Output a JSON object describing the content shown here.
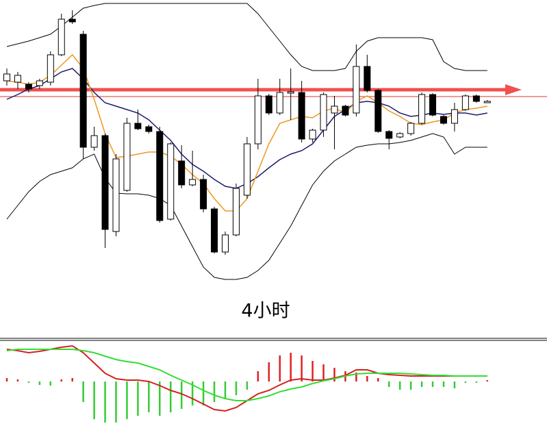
{
  "chart_data": [
    {
      "type": "candlestick",
      "annotation": "4小时",
      "ylim": [
        0,
        420
      ],
      "open": [
        302,
        300,
        297,
        295,
        300,
        340,
        392,
        370,
        205,
        222,
        82,
        142,
        240,
        235,
        228,
        100,
        185,
        150,
        158,
        115,
        52,
        77,
        135,
        210,
        280,
        255,
        284,
        285,
        217,
        230,
        255,
        265,
        255,
        323,
        288,
        228,
        220,
        225,
        240,
        282,
        250,
        240,
        260,
        280,
        270
      ],
      "close": [
        312,
        310,
        290,
        302,
        340,
        392,
        388,
        205,
        222,
        85,
        188,
        240,
        232,
        228,
        98,
        210,
        150,
        158,
        115,
        52,
        77,
        145,
        210,
        280,
        255,
        285,
        286,
        217,
        230,
        282,
        265,
        252,
        323,
        288,
        228,
        218,
        225,
        240,
        282,
        252,
        240,
        260,
        280,
        272,
        272
      ],
      "high": [
        320,
        315,
        300,
        305,
        345,
        400,
        405,
        375,
        235,
        225,
        195,
        248,
        260,
        238,
        235,
        212,
        208,
        200,
        165,
        118,
        82,
        152,
        220,
        305,
        283,
        305,
        320,
        302,
        232,
        285,
        280,
        267,
        355,
        340,
        290,
        230,
        227,
        242,
        285,
        284,
        252,
        270,
        282,
        282,
        274
      ],
      "low": [
        295,
        290,
        285,
        290,
        295,
        338,
        385,
        188,
        200,
        58,
        75,
        140,
        230,
        225,
        95,
        98,
        145,
        148,
        110,
        50,
        48,
        75,
        130,
        202,
        252,
        252,
        245,
        212,
        212,
        220,
        202,
        250,
        250,
        285,
        226,
        202,
        218,
        222,
        238,
        250,
        238,
        228,
        258,
        270,
        270
      ],
      "up_color": "#ffffff",
      "down_color": "#000000",
      "series": [
        {
          "color": "#000000",
          "values": [
            352,
            356,
            360,
            365,
            370,
            382,
            395,
            408,
            412,
            415,
            415,
            415,
            415,
            415,
            415,
            415,
            415,
            415,
            415,
            415,
            415,
            415,
            415,
            400,
            380,
            360,
            340,
            323,
            317,
            317,
            317,
            320,
            345,
            360,
            365,
            365,
            365,
            365,
            365,
            362,
            330,
            320,
            317,
            317,
            317
          ]
        },
        {
          "color": "#000000",
          "values": [
            100,
            120,
            140,
            155,
            165,
            170,
            175,
            188,
            195,
            160,
            138,
            137,
            137,
            135,
            130,
            120,
            90,
            60,
            30,
            15,
            12,
            12,
            15,
            25,
            40,
            65,
            90,
            120,
            150,
            170,
            185,
            195,
            205,
            208,
            210,
            210,
            212,
            215,
            220,
            225,
            220,
            195,
            205,
            205,
            205
          ]
        },
        {
          "color": "#1a1a6e",
          "values": [
            275,
            282,
            290,
            295,
            305,
            315,
            320,
            305,
            285,
            270,
            265,
            260,
            255,
            245,
            230,
            215,
            195,
            180,
            170,
            158,
            148,
            145,
            152,
            162,
            175,
            187,
            195,
            200,
            210,
            230,
            250,
            260,
            270,
            272,
            270,
            265,
            255,
            250,
            252,
            255,
            253,
            255,
            255,
            252,
            255
          ]
        },
        {
          "color": "#f0961e",
          "values": [
            302,
            300,
            297,
            300,
            310,
            325,
            340,
            320,
            275,
            225,
            190,
            192,
            195,
            198,
            198,
            192,
            180,
            165,
            152,
            130,
            112,
            112,
            130,
            170,
            210,
            240,
            245,
            250,
            248,
            258,
            262,
            255,
            272,
            280,
            270,
            258,
            250,
            240,
            238,
            242,
            245,
            255,
            260,
            262,
            265
          ]
        }
      ]
    },
    {
      "type": "macd",
      "ylim": [
        -65,
        60
      ],
      "histogram": [
        5,
        3,
        -2,
        -5,
        -6,
        3,
        5,
        -30,
        -55,
        -60,
        -60,
        -55,
        -50,
        -45,
        -50,
        -45,
        -40,
        -35,
        -35,
        -30,
        -25,
        -20,
        -12,
        15,
        28,
        38,
        42,
        38,
        30,
        25,
        20,
        15,
        13,
        8,
        5,
        -8,
        -12,
        -12,
        -8,
        -8,
        -8,
        -10,
        -2,
        -2,
        2
      ],
      "pos_color": "#e02020",
      "neg_color": "#33cc33",
      "series": [
        {
          "color": "#d42020",
          "values": [
            47,
            45,
            42,
            44,
            47,
            50,
            52,
            42,
            27,
            12,
            4,
            2,
            2,
            0,
            -6,
            -13,
            -18,
            -25,
            -33,
            -41,
            -43,
            -38,
            -28,
            -18,
            -13,
            -5,
            2,
            4,
            2,
            2,
            5,
            9,
            17,
            17,
            12,
            10,
            9,
            8,
            8,
            8,
            8,
            8,
            8,
            8,
            8
          ]
        },
        {
          "color": "#33dd33",
          "values": [
            45,
            47,
            47,
            47,
            47,
            47,
            47,
            45,
            42,
            37,
            32,
            29,
            27,
            22,
            17,
            9,
            2,
            -5,
            -13,
            -20,
            -25,
            -28,
            -28,
            -25,
            -21,
            -15,
            -11,
            -8,
            -3,
            1,
            4,
            8,
            11,
            12,
            12,
            12,
            12,
            11,
            10,
            9,
            9,
            8,
            8,
            8,
            8
          ]
        }
      ]
    }
  ]
}
